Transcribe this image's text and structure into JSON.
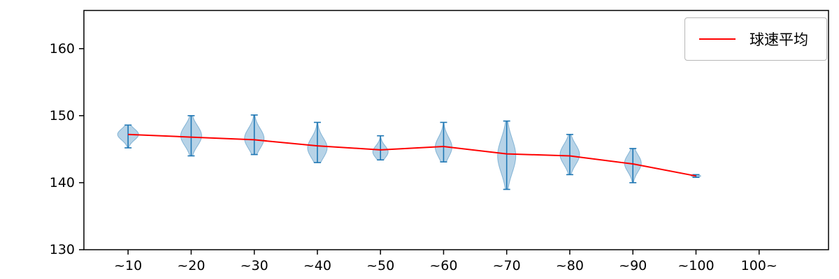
{
  "chart_data": {
    "type": "violin+line",
    "title": "",
    "xlabel": "",
    "ylabel": "",
    "categories": [
      "~10",
      "~20",
      "~30",
      "~40",
      "~50",
      "~60",
      "~70",
      "~80",
      "~90",
      "~100",
      "100~"
    ],
    "yticks": [
      130,
      140,
      150,
      160
    ],
    "ylim": [
      130,
      165.7
    ],
    "grid": false,
    "legend_position": "upper right",
    "series": [
      {
        "name": "球速平均",
        "values": [
          147.2,
          146.8,
          146.4,
          145.5,
          144.9,
          145.4,
          144.3,
          144.0,
          142.8,
          141.0,
          null
        ]
      }
    ],
    "violins": [
      {
        "min": 145.2,
        "max": 148.6,
        "mode": 147.2,
        "halfwidth": 15
      },
      {
        "min": 144.0,
        "max": 150.0,
        "mode": 147.0,
        "halfwidth": 15
      },
      {
        "min": 144.2,
        "max": 150.1,
        "mode": 146.6,
        "halfwidth": 14
      },
      {
        "min": 143.0,
        "max": 149.0,
        "mode": 145.2,
        "halfwidth": 14
      },
      {
        "min": 143.4,
        "max": 147.0,
        "mode": 144.6,
        "halfwidth": 11
      },
      {
        "min": 143.1,
        "max": 149.0,
        "mode": 145.3,
        "halfwidth": 12
      },
      {
        "min": 139.0,
        "max": 149.2,
        "mode": 144.0,
        "halfwidth": 13
      },
      {
        "min": 141.2,
        "max": 147.2,
        "mode": 144.2,
        "halfwidth": 14
      },
      {
        "min": 140.0,
        "max": 145.1,
        "mode": 142.9,
        "halfwidth": 12
      },
      {
        "min": 140.8,
        "max": 141.2,
        "mode": 141.0,
        "halfwidth": 7
      },
      null
    ],
    "colors": {
      "violin_fill": "rgba(31,119,180,0.32)",
      "violin_edge": "rgba(31,119,180,0.45)",
      "whisker": "#1f77b4",
      "line": "#ff0000",
      "axis": "#000000"
    }
  }
}
